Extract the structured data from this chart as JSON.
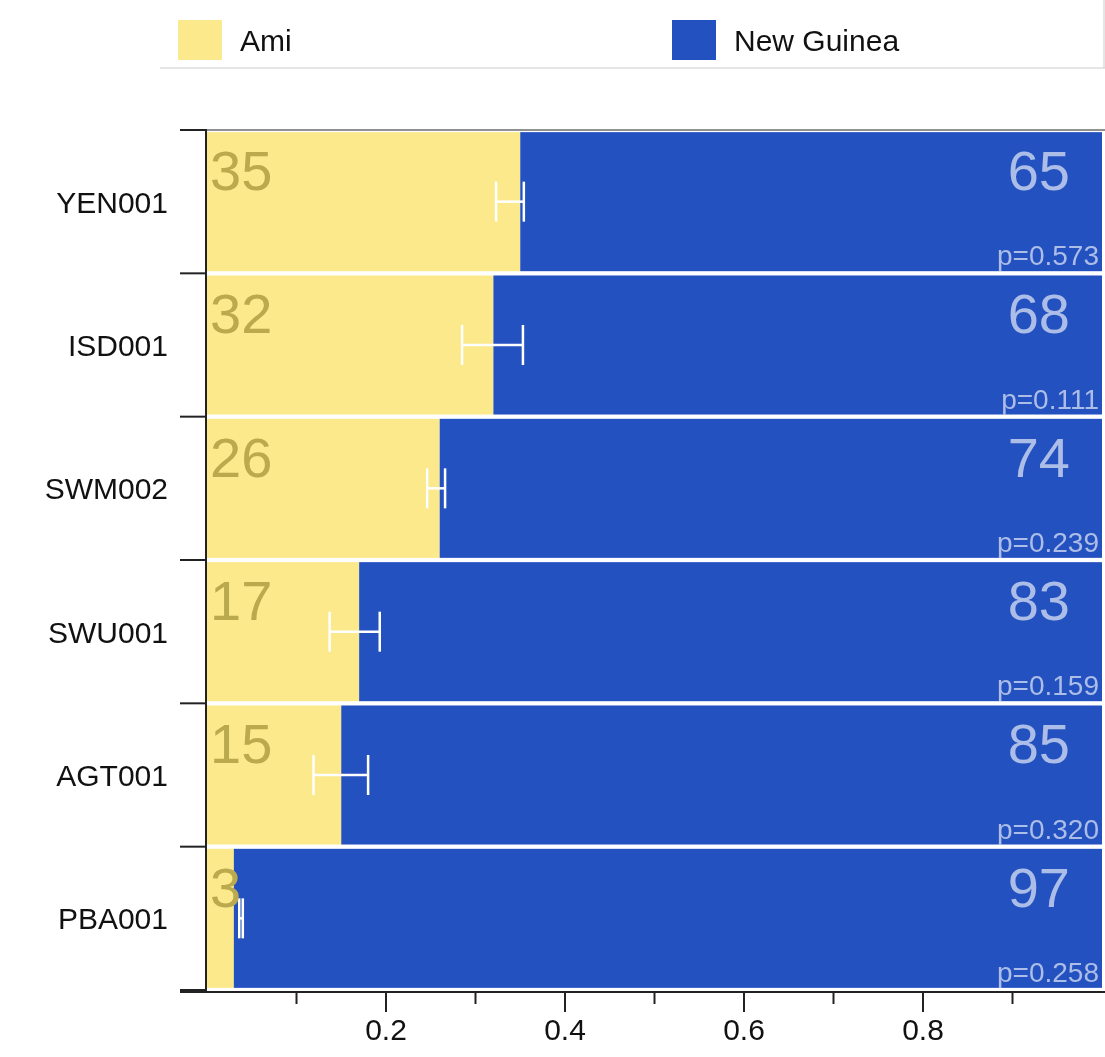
{
  "chart_data": {
    "type": "bar",
    "orientation": "horizontal",
    "stacked": true,
    "legend": "top",
    "grid": false,
    "categories": [
      "YEN001",
      "ISD001",
      "SWM002",
      "SWU001",
      "AGT001",
      "PBA001"
    ],
    "series": [
      {
        "name": "Ami",
        "color": "#fbe98c",
        "values": [
          0.35,
          0.32,
          0.26,
          0.17,
          0.15,
          0.03
        ],
        "errors": [
          [
            0.323,
            0.354
          ],
          [
            0.285,
            0.353
          ],
          [
            0.246,
            0.266
          ],
          [
            0.137,
            0.193
          ],
          [
            0.119,
            0.18
          ],
          [
            0.036,
            0.04
          ]
        ]
      },
      {
        "name": "New Guinea",
        "color": "#2451c0",
        "values": [
          0.65,
          0.68,
          0.74,
          0.83,
          0.85,
          0.97
        ]
      }
    ],
    "xlim": [
      0,
      1
    ],
    "xticks": [
      {
        "value": 0.1,
        "label": null
      },
      0.2,
      {
        "value": 0.3,
        "label": null
      },
      0.4,
      {
        "value": 0.5,
        "label": null
      },
      0.6,
      {
        "value": 0.7,
        "label": null
      },
      0.8,
      {
        "value": 0.9,
        "label": null
      }
    ],
    "annotations": [
      "35",
      "32",
      "26",
      "17",
      "15",
      "3",
      "65",
      "68",
      "74",
      "83",
      "85",
      "97",
      "p=0.573",
      "p=0.111",
      "p=0.239",
      "p=0.159",
      "p=0.320",
      "p=0.258"
    ]
  }
}
